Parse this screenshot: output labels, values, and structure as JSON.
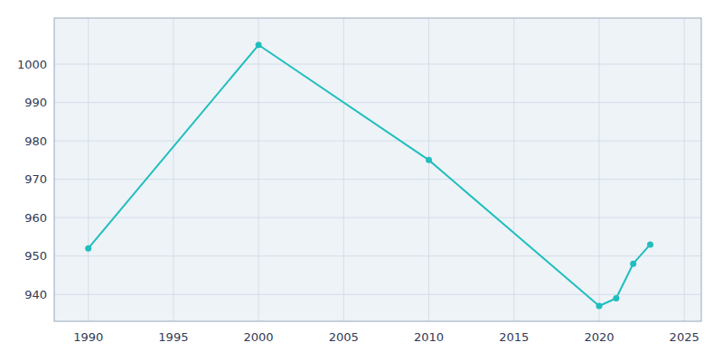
{
  "chart_data": {
    "type": "line",
    "x": [
      1990,
      2000,
      2010,
      2020,
      2021,
      2022,
      2023
    ],
    "values": [
      952,
      1005,
      975,
      937,
      939,
      948,
      953
    ],
    "color": "#20BEBE",
    "marker": "circle",
    "xlim": [
      1988,
      2026
    ],
    "ylim": [
      933,
      1012
    ],
    "xticks": [
      1990,
      1995,
      2000,
      2005,
      2010,
      2015,
      2020,
      2025
    ],
    "yticks": [
      940,
      950,
      960,
      970,
      980,
      990,
      1000
    ],
    "grid": true
  }
}
